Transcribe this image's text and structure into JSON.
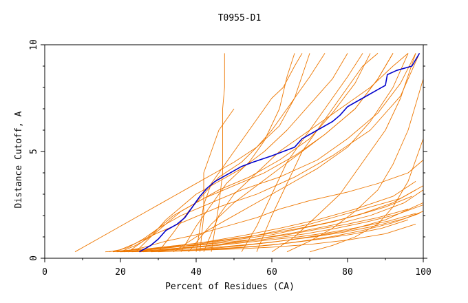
{
  "chart_data": {
    "type": "line",
    "title": "T0955-D1",
    "xlabel": "Percent of Residues (CA)",
    "ylabel": "Distance Cutoff, A",
    "xlim": [
      0,
      100
    ],
    "ylim": [
      0,
      10
    ],
    "xticks": [
      0,
      20,
      40,
      60,
      80,
      100
    ],
    "yticks": [
      0,
      5,
      10
    ],
    "grid": false,
    "legend": "none",
    "colors": {
      "highlight": "#0000cc",
      "others": "#ee7700"
    },
    "highlight": {
      "x": [
        25,
        28,
        30,
        32,
        35,
        37,
        39,
        41,
        43,
        45,
        47,
        50,
        52,
        55,
        60,
        63,
        66,
        68,
        72,
        76,
        78,
        80,
        84,
        88,
        90,
        90.5,
        93,
        97,
        99
      ],
      "y": [
        0.3,
        0.6,
        0.9,
        1.3,
        1.6,
        1.9,
        2.4,
        2.9,
        3.3,
        3.6,
        3.8,
        4.1,
        4.3,
        4.5,
        4.8,
        5.0,
        5.2,
        5.6,
        6.0,
        6.4,
        6.7,
        7.1,
        7.5,
        7.9,
        8.1,
        8.6,
        8.8,
        9.0,
        9.6
      ]
    },
    "others": [
      {
        "x": [
          44,
          46,
          47,
          47,
          47.5,
          47.5
        ],
        "y": [
          0.3,
          2.5,
          4.0,
          7.0,
          8.0,
          9.6
        ]
      },
      {
        "x": [
          41,
          42,
          42,
          44,
          46,
          48,
          50
        ],
        "y": [
          0.3,
          2.0,
          4.0,
          5.0,
          6.0,
          6.5,
          7.0
        ]
      },
      {
        "x": [
          40,
          42,
          44,
          48,
          52,
          56,
          58,
          60,
          63,
          66,
          68
        ],
        "y": [
          0.3,
          2.5,
          3.5,
          4.5,
          5.5,
          6.5,
          7.0,
          7.5,
          8.0,
          9.0,
          9.6
        ]
      },
      {
        "x": [
          36,
          40,
          44,
          48,
          54,
          58,
          62,
          64,
          66
        ],
        "y": [
          0.3,
          1.5,
          2.5,
          3.5,
          4.5,
          5.5,
          7.0,
          8.5,
          9.6
        ]
      },
      {
        "x": [
          30,
          34,
          38,
          42,
          46,
          52,
          56,
          60,
          64,
          70,
          74
        ],
        "y": [
          0.3,
          1.2,
          2.2,
          3.0,
          3.8,
          4.5,
          5.2,
          6.0,
          7.0,
          8.5,
          9.6
        ]
      },
      {
        "x": [
          24,
          28,
          32,
          36,
          40,
          46,
          52,
          58,
          64,
          70,
          76,
          80
        ],
        "y": [
          0.3,
          1.0,
          1.8,
          2.4,
          3.0,
          3.6,
          4.2,
          5.0,
          6.0,
          7.2,
          8.4,
          9.6
        ]
      },
      {
        "x": [
          22,
          26,
          30,
          34,
          40,
          46,
          54,
          62,
          70,
          76,
          82,
          86
        ],
        "y": [
          0.3,
          0.8,
          1.4,
          2.0,
          2.6,
          3.2,
          3.8,
          4.6,
          5.6,
          6.8,
          8.2,
          9.6
        ]
      },
      {
        "x": [
          20,
          24,
          28,
          32,
          36,
          42,
          50,
          58,
          66,
          74,
          82,
          88,
          92
        ],
        "y": [
          0.3,
          0.6,
          1.0,
          1.6,
          2.2,
          2.8,
          3.4,
          4.0,
          4.8,
          5.8,
          7.0,
          8.4,
          9.6
        ]
      },
      {
        "x": [
          18,
          22,
          26,
          30,
          36,
          44,
          52,
          62,
          72,
          80,
          88,
          94,
          98
        ],
        "y": [
          0.3,
          0.5,
          0.9,
          1.4,
          2.0,
          2.6,
          3.2,
          3.8,
          4.6,
          5.6,
          6.8,
          8.2,
          9.6
        ]
      },
      {
        "x": [
          17,
          20,
          24,
          30,
          38,
          46,
          56,
          66,
          76,
          86,
          94,
          99
        ],
        "y": [
          0.3,
          0.4,
          0.7,
          1.2,
          1.8,
          2.4,
          3.0,
          3.8,
          4.8,
          6.0,
          7.6,
          9.6
        ]
      },
      {
        "x": [
          8,
          14,
          20,
          26,
          32,
          38,
          44,
          50,
          56,
          62,
          66,
          70
        ],
        "y": [
          0.3,
          0.9,
          1.5,
          2.1,
          2.7,
          3.3,
          3.9,
          4.5,
          5.2,
          6.2,
          7.5,
          9.6
        ]
      },
      {
        "x": [
          20,
          26,
          32,
          40,
          48,
          56,
          62,
          70,
          80,
          88,
          96,
          100
        ],
        "y": [
          0.3,
          0.5,
          0.8,
          1.1,
          1.5,
          1.9,
          2.3,
          2.7,
          3.1,
          3.5,
          4.0,
          4.6
        ]
      },
      {
        "x": [
          22,
          30,
          38,
          46,
          54,
          62,
          70,
          78,
          86,
          94,
          100
        ],
        "y": [
          0.3,
          0.45,
          0.6,
          0.8,
          1.0,
          1.3,
          1.6,
          2.0,
          2.4,
          2.8,
          3.4
        ]
      },
      {
        "x": [
          20,
          28,
          36,
          44,
          52,
          60,
          68,
          76,
          84,
          92,
          98
        ],
        "y": [
          0.3,
          0.4,
          0.55,
          0.7,
          0.9,
          1.1,
          1.4,
          1.7,
          2.1,
          2.6,
          3.2
        ]
      },
      {
        "x": [
          16,
          24,
          32,
          40,
          48,
          56,
          64,
          72,
          80,
          88,
          96
        ],
        "y": [
          0.3,
          0.4,
          0.5,
          0.6,
          0.75,
          0.9,
          1.1,
          1.35,
          1.6,
          1.9,
          2.3
        ]
      },
      {
        "x": [
          19,
          27,
          35,
          43,
          51,
          59,
          67,
          75,
          83,
          91,
          98
        ],
        "y": [
          0.3,
          0.35,
          0.45,
          0.55,
          0.7,
          0.85,
          1.0,
          1.2,
          1.45,
          1.75,
          2.1
        ]
      },
      {
        "x": [
          21,
          29,
          37,
          45,
          53,
          61,
          69,
          77,
          85,
          93,
          100
        ],
        "y": [
          0.3,
          0.38,
          0.5,
          0.62,
          0.78,
          0.95,
          1.15,
          1.4,
          1.7,
          2.05,
          2.5
        ]
      },
      {
        "x": [
          23,
          31,
          39,
          47,
          55,
          63,
          71,
          79,
          87,
          95,
          100
        ],
        "y": [
          0.3,
          0.36,
          0.44,
          0.54,
          0.66,
          0.82,
          1.0,
          1.22,
          1.5,
          1.85,
          2.2
        ]
      },
      {
        "x": [
          25,
          33,
          41,
          49,
          57,
          65,
          73,
          81,
          89,
          96
        ],
        "y": [
          0.3,
          0.34,
          0.4,
          0.48,
          0.58,
          0.72,
          0.9,
          1.12,
          1.4,
          1.8
        ]
      },
      {
        "x": [
          18,
          26,
          34,
          42,
          50,
          58,
          66,
          74,
          82,
          90,
          97
        ],
        "y": [
          0.3,
          0.42,
          0.58,
          0.74,
          0.92,
          1.12,
          1.36,
          1.64,
          1.98,
          2.4,
          2.9
        ]
      },
      {
        "x": [
          20,
          30,
          40,
          50,
          60,
          70,
          80,
          90,
          98
        ],
        "y": [
          0.3,
          0.33,
          0.37,
          0.43,
          0.52,
          0.65,
          0.85,
          1.15,
          1.6
        ]
      },
      {
        "x": [
          28,
          36,
          44,
          52,
          60,
          68,
          76,
          84,
          92,
          99
        ],
        "y": [
          0.3,
          0.34,
          0.4,
          0.5,
          0.62,
          0.8,
          1.02,
          1.3,
          1.66,
          2.1
        ]
      },
      {
        "x": [
          30,
          40,
          50,
          60,
          70,
          80,
          90,
          100
        ],
        "y": [
          0.3,
          0.4,
          0.55,
          0.75,
          1.0,
          1.3,
          1.8,
          2.6
        ]
      },
      {
        "x": [
          26,
          36,
          46,
          56,
          66,
          76,
          86,
          95,
          100
        ],
        "y": [
          0.3,
          0.45,
          0.65,
          0.9,
          1.2,
          1.55,
          2.0,
          2.6,
          3.2
        ]
      },
      {
        "x": [
          22,
          32,
          42,
          52,
          62,
          72,
          82,
          92,
          98
        ],
        "y": [
          0.3,
          0.5,
          0.75,
          1.05,
          1.4,
          1.8,
          2.3,
          2.9,
          3.6
        ]
      },
      {
        "x": [
          42,
          46,
          50,
          56,
          62,
          70,
          78,
          86,
          92,
          96
        ],
        "y": [
          0.3,
          2.0,
          3.0,
          4.0,
          5.0,
          6.0,
          7.0,
          8.0,
          9.0,
          9.6
        ]
      },
      {
        "x": [
          38,
          44,
          50,
          56,
          62,
          68,
          74,
          82,
          88,
          92
        ],
        "y": [
          0.3,
          1.6,
          2.6,
          3.4,
          4.2,
          5.0,
          5.8,
          7.0,
          8.4,
          9.6
        ]
      },
      {
        "x": [
          34,
          40,
          48,
          56,
          64,
          72,
          80,
          86,
          92,
          96
        ],
        "y": [
          0.3,
          1.0,
          1.8,
          2.6,
          3.4,
          4.2,
          5.2,
          6.4,
          8.0,
          9.6
        ]
      },
      {
        "x": [
          52,
          56,
          60,
          64,
          68,
          72,
          76,
          80,
          84
        ],
        "y": [
          0.3,
          1.5,
          3.0,
          4.5,
          5.5,
          6.5,
          7.5,
          8.5,
          9.6
        ]
      },
      {
        "x": [
          56,
          60,
          64,
          68,
          72,
          76,
          80,
          84,
          88
        ],
        "y": [
          0.3,
          2.0,
          3.5,
          5.0,
          6.0,
          7.0,
          8.0,
          9.0,
          9.6
        ]
      },
      {
        "x": [
          60,
          66,
          72,
          78,
          82,
          86,
          90,
          94,
          98
        ],
        "y": [
          0.3,
          1.0,
          2.0,
          3.0,
          4.0,
          5.0,
          6.0,
          7.5,
          9.6
        ]
      },
      {
        "x": [
          64,
          70,
          76,
          82,
          88,
          92,
          96,
          100
        ],
        "y": [
          0.3,
          0.8,
          1.4,
          2.2,
          3.2,
          4.4,
          6.0,
          8.4
        ]
      },
      {
        "x": [
          70,
          76,
          82,
          88,
          92,
          96,
          100
        ],
        "y": [
          0.3,
          0.6,
          1.0,
          1.6,
          2.4,
          3.6,
          5.6
        ]
      }
    ]
  }
}
